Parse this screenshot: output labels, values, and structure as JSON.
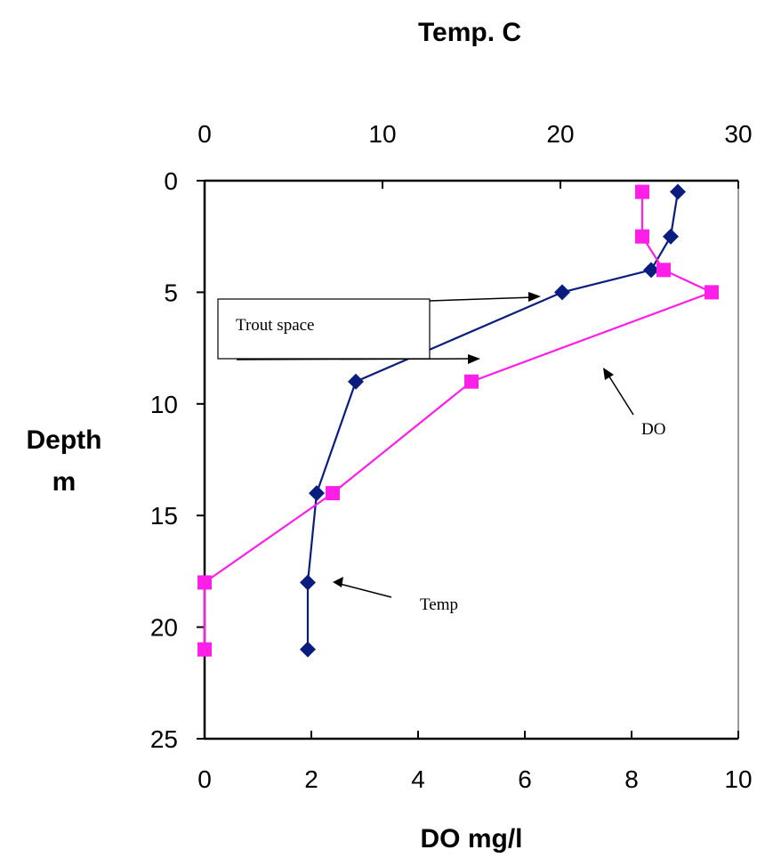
{
  "chart_data": {
    "type": "line",
    "title": "",
    "x_top": {
      "label": "Temp. C",
      "range": [
        0,
        30
      ],
      "ticks": [
        0,
        10,
        20,
        30
      ]
    },
    "x_bottom": {
      "label": "DO mg/l",
      "range": [
        0,
        10
      ],
      "ticks": [
        0,
        2,
        4,
        6,
        8,
        10
      ]
    },
    "y": {
      "label_line1": "Depth",
      "label_line2": "m",
      "range": [
        0,
        25
      ],
      "inverted": true,
      "ticks": [
        0,
        5,
        10,
        15,
        20,
        25
      ]
    },
    "series": [
      {
        "axis": "top",
        "color": "#0a1d7f",
        "marker": "diamond",
        "points": [
          {
            "x": 26.6,
            "y": 0.5
          },
          {
            "x": 26.2,
            "y": 2.5
          },
          {
            "x": 25.1,
            "y": 4
          },
          {
            "x": 20.1,
            "y": 5
          },
          {
            "x": 8.5,
            "y": 9
          },
          {
            "x": 6.3,
            "y": 14
          },
          {
            "x": 5.8,
            "y": 18
          },
          {
            "x": 5.8,
            "y": 21
          }
        ]
      },
      {
        "axis": "bottom",
        "color": "#ff1fe6",
        "marker": "square",
        "points": [
          {
            "x": 8.2,
            "y": 0.5
          },
          {
            "x": 8.2,
            "y": 2.5
          },
          {
            "x": 8.6,
            "y": 4
          },
          {
            "x": 9.5,
            "y": 5
          },
          {
            "x": 5.0,
            "y": 9
          },
          {
            "x": 2.4,
            "y": 14
          },
          {
            "x": 0.0,
            "y": 18
          },
          {
            "x": 0.0,
            "y": 21
          }
        ]
      }
    ],
    "annotations": {
      "trout": "Trout space",
      "do": "DO",
      "temp": "Temp"
    }
  }
}
